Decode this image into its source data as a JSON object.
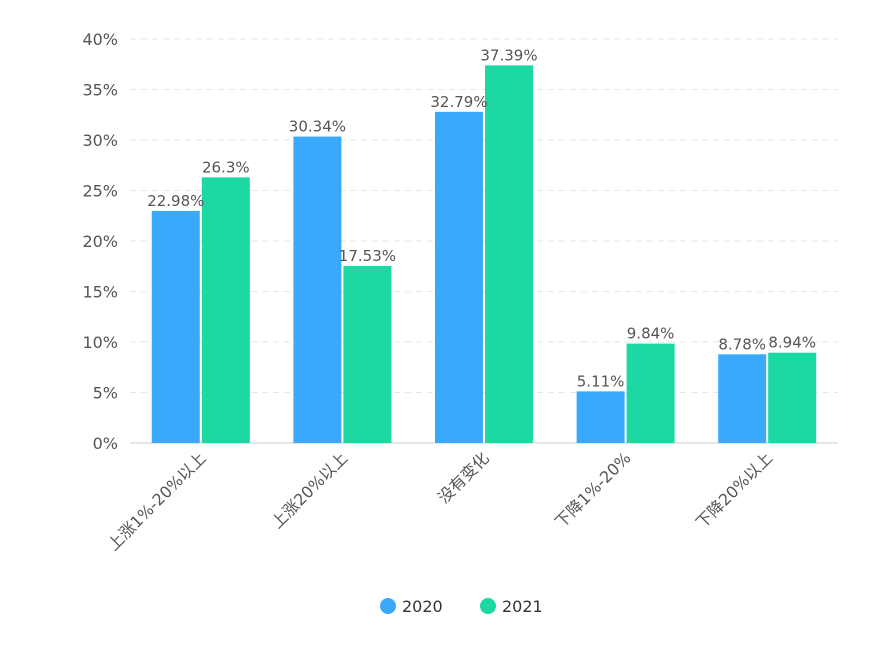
{
  "chart_data": {
    "type": "bar",
    "title": "",
    "xlabel": "",
    "ylabel": "",
    "ylim": [
      0,
      40
    ],
    "y_ticks": [
      "0%",
      "5%",
      "10%",
      "15%",
      "20%",
      "25%",
      "30%",
      "35%",
      "40%"
    ],
    "y_tick_values": [
      0,
      5,
      10,
      15,
      20,
      25,
      30,
      35,
      40
    ],
    "grid": true,
    "legend_position": "bottom",
    "categories": [
      "上涨1%-20%以上",
      "上涨20%以上",
      "没有变化",
      "下降1%-20%",
      "下降20%以上"
    ],
    "series": [
      {
        "name": "2020",
        "color": "#3aa9fb",
        "values": [
          22.98,
          30.34,
          32.79,
          5.11,
          8.78
        ],
        "labels": [
          "22.98%",
          "30.34%",
          "32.79%",
          "5.11%",
          "8.78%"
        ]
      },
      {
        "name": "2021",
        "color": "#1cd8a3",
        "values": [
          26.3,
          17.53,
          37.39,
          9.84,
          8.94
        ],
        "labels": [
          "26.3%",
          "17.53%",
          "37.39%",
          "9.84%",
          "8.94%"
        ]
      }
    ]
  }
}
